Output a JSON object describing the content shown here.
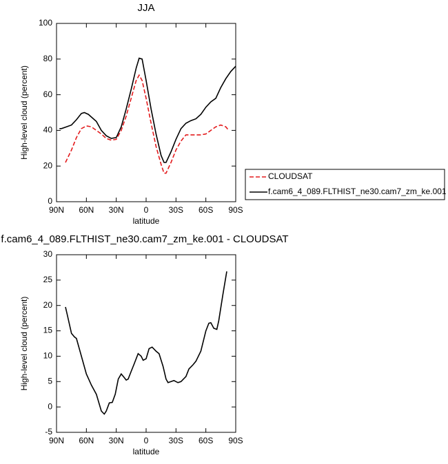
{
  "chart_data": [
    {
      "type": "line",
      "title": "JJA",
      "x_label": "latitude",
      "y_label": "High-level cloud (percent)",
      "xlim": [
        90,
        -90
      ],
      "xticks": [
        {
          "value": 90,
          "label": "90N"
        },
        {
          "value": 60,
          "label": "60N"
        },
        {
          "value": 30,
          "label": "30N"
        },
        0,
        {
          "value": -30,
          "label": "30S"
        },
        {
          "value": -60,
          "label": "60S"
        },
        {
          "value": -90,
          "label": "90S"
        }
      ],
      "ylim": [
        0,
        100
      ],
      "yticks": [
        0,
        20,
        40,
        60,
        80,
        100
      ],
      "legend": "right",
      "series": [
        {
          "name": "CLOUDSAT",
          "color": "#e31a1c",
          "line_style": "dashed",
          "x": [
            81,
            75,
            70,
            65,
            60,
            55,
            50,
            45,
            40,
            35,
            30,
            25,
            20,
            15,
            10,
            7,
            4,
            0,
            -5,
            -10,
            -15,
            -18,
            -20,
            -25,
            -30,
            -35,
            -40,
            -45,
            -50,
            -55,
            -60,
            -65,
            -70,
            -75,
            -80,
            -83
          ],
          "values": [
            22,
            29,
            36,
            41,
            42.5,
            42,
            40,
            38,
            35.5,
            34.5,
            35,
            40,
            48,
            58,
            68,
            71,
            68,
            58,
            44,
            31,
            21,
            16,
            16,
            22,
            29,
            34,
            37.5,
            37.5,
            37.5,
            37.5,
            38,
            40,
            42,
            43,
            42,
            40
          ]
        },
        {
          "name": "f.cam6_4_089.FLTHIST_ne30.cam7_zm_ke.001",
          "color": "#000000",
          "line_style": "solid",
          "x": [
            87,
            85,
            80,
            75,
            70,
            65,
            62,
            58,
            55,
            50,
            45,
            40,
            35,
            30,
            25,
            20,
            15,
            10,
            7,
            4,
            0,
            -5,
            -10,
            -15,
            -18,
            -20,
            -25,
            -30,
            -35,
            -40,
            -45,
            -50,
            -55,
            -60,
            -65,
            -70,
            -75,
            -80,
            -85,
            -90
          ],
          "values": [
            41,
            41,
            42,
            43,
            46,
            49.5,
            50,
            49,
            47.5,
            45,
            40,
            37,
            35.5,
            36,
            42,
            52,
            63,
            75,
            80.5,
            80,
            68,
            52,
            38,
            26,
            22,
            22,
            28,
            35,
            41,
            44,
            45.5,
            46.5,
            49,
            53,
            56,
            58,
            64,
            69,
            73,
            76
          ]
        }
      ]
    },
    {
      "type": "line",
      "title": "f.cam6_4_089.FLTHIST_ne30.cam7_zm_ke.001 - CLOUDSAT",
      "x_label": "latitude",
      "y_label": "High-level cloud (percent)",
      "xlim": [
        90,
        -90
      ],
      "xticks": [
        {
          "value": 90,
          "label": "90N"
        },
        {
          "value": 60,
          "label": "60N"
        },
        {
          "value": 30,
          "label": "30N"
        },
        0,
        {
          "value": -30,
          "label": "30S"
        },
        {
          "value": -60,
          "label": "60S"
        },
        {
          "value": -90,
          "label": "90S"
        }
      ],
      "ylim": [
        -5,
        30
      ],
      "yticks": [
        -5,
        0,
        5,
        10,
        15,
        20,
        25,
        30
      ],
      "series": [
        {
          "color": "#000000",
          "line_style": "solid",
          "x": [
            81,
            79,
            75,
            72,
            70,
            65,
            60,
            55,
            50,
            45,
            42,
            40,
            37,
            34,
            31,
            28,
            25,
            22,
            20,
            18,
            15,
            12,
            8,
            5,
            3,
            0,
            -3,
            -6,
            -10,
            -13,
            -17,
            -20,
            -22,
            -25,
            -28,
            -32,
            -35,
            -40,
            -43,
            -47,
            -50,
            -55,
            -60,
            -63,
            -65,
            -68,
            -71,
            -73,
            -77,
            -81
          ],
          "values": [
            19.7,
            18,
            14.5,
            13.8,
            13.5,
            10,
            6.5,
            4.3,
            2.5,
            -0.8,
            -1.4,
            -0.8,
            0.8,
            0.9,
            2.5,
            5.5,
            6.5,
            5.8,
            5.3,
            5.5,
            7,
            8.5,
            10.5,
            10,
            9.2,
            9.5,
            11.5,
            11.8,
            11,
            10.5,
            8,
            5.5,
            4.8,
            5,
            5.2,
            4.8,
            5,
            6,
            7.5,
            8.3,
            9,
            11,
            15,
            16.5,
            16.6,
            15.5,
            15.3,
            17,
            22,
            26.7
          ]
        }
      ]
    }
  ]
}
